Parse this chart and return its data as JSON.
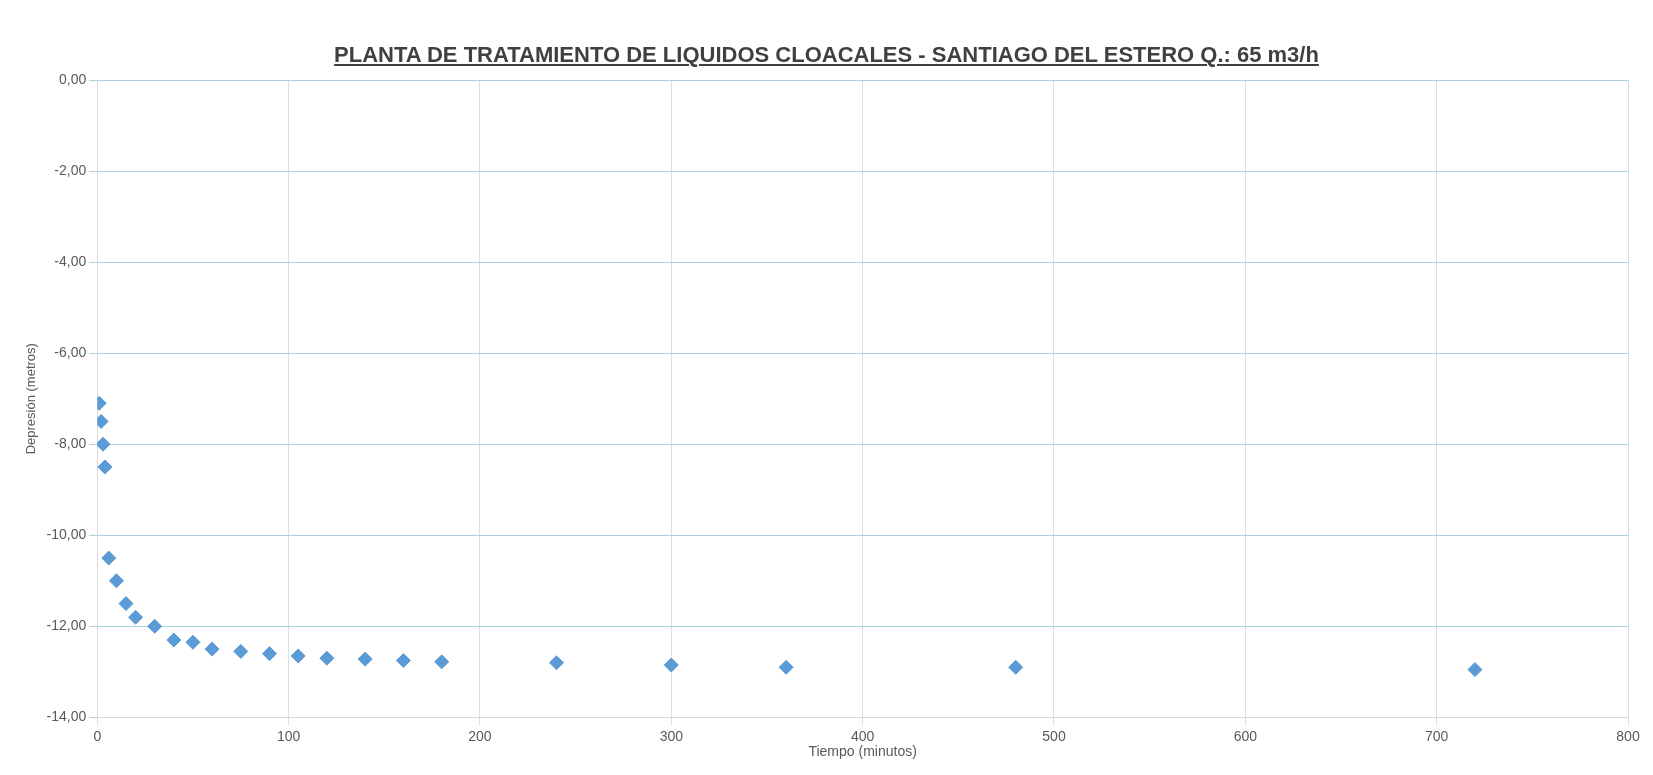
{
  "chart_data": {
    "type": "scatter",
    "title": "PLANTA DE TRATAMIENTO DE LIQUIDOS CLOACALES - SANTIAGO DEL ESTERO   Q.: 65 m3/h",
    "xlabel": "Tiempo (minutos)",
    "ylabel": "Depresión (metros)",
    "x": [
      1,
      2,
      3,
      4,
      6,
      10,
      15,
      20,
      30,
      40,
      50,
      60,
      75,
      90,
      105,
      120,
      140,
      160,
      180,
      240,
      300,
      360,
      480,
      720
    ],
    "series": [
      {
        "color": "#5b9bd5",
        "values": [
          -7.1,
          -7.5,
          -8.0,
          -8.5,
          -10.5,
          -11.0,
          -11.5,
          -11.8,
          -12.0,
          -12.3,
          -12.35,
          -12.5,
          -12.55,
          -12.6,
          -12.65,
          -12.7,
          -12.72,
          -12.75,
          -12.78,
          -12.8,
          -12.85,
          -12.9,
          -12.9,
          -12.95
        ]
      }
    ],
    "xlim": [
      0,
      800
    ],
    "xticks": [
      0,
      100,
      200,
      300,
      400,
      500,
      600,
      700,
      800
    ],
    "ylim": [
      -14,
      0
    ],
    "yticks": [
      {
        "value": -14,
        "label": "-14,00"
      },
      {
        "value": -12,
        "label": "-12,00"
      },
      {
        "value": -10,
        "label": "-10,00"
      },
      {
        "value": -8,
        "label": "-8,00"
      },
      {
        "value": -6,
        "label": "-6,00"
      },
      {
        "value": -4,
        "label": "-4,00"
      },
      {
        "value": -2,
        "label": "-2,00"
      },
      {
        "value": 0,
        "label": "0,00"
      }
    ],
    "grid": true,
    "marker": "diamond",
    "legend": false
  }
}
